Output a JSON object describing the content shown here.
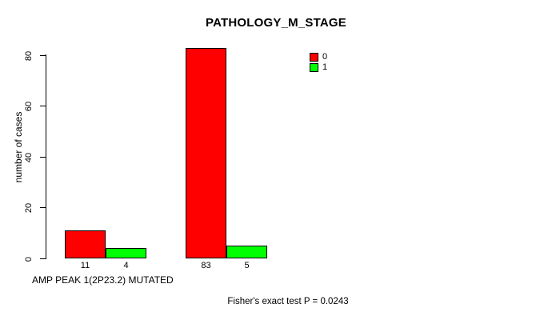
{
  "chart": {
    "title": "PATHOLOGY_M_STAGE",
    "ylabel": "number of cases",
    "xlabel": "AMP PEAK 1(2P23.2) MUTATED",
    "annotation": "Fisher's exact test P = 0.0243",
    "colors": {
      "series0": "#ff0000",
      "series1": "#00ff00",
      "axis": "#000000",
      "background": "#ffffff"
    }
  },
  "chart_data": {
    "type": "bar",
    "title": "PATHOLOGY_M_STAGE",
    "xlabel": "AMP PEAK 1(2P23.2) MUTATED",
    "ylabel": "number of cases",
    "ylim": [
      0,
      80
    ],
    "yticks": [
      0,
      20,
      40,
      60,
      80
    ],
    "grid": false,
    "legend_position": "top-right",
    "bar_value_labels": [
      "11",
      "4",
      "83",
      "5"
    ],
    "series": [
      {
        "name": "0",
        "color": "#ff0000",
        "values": [
          11,
          83
        ]
      },
      {
        "name": "1",
        "color": "#00ff00",
        "values": [
          4,
          5
        ]
      }
    ],
    "annotation": "Fisher's exact test P = 0.0243"
  }
}
